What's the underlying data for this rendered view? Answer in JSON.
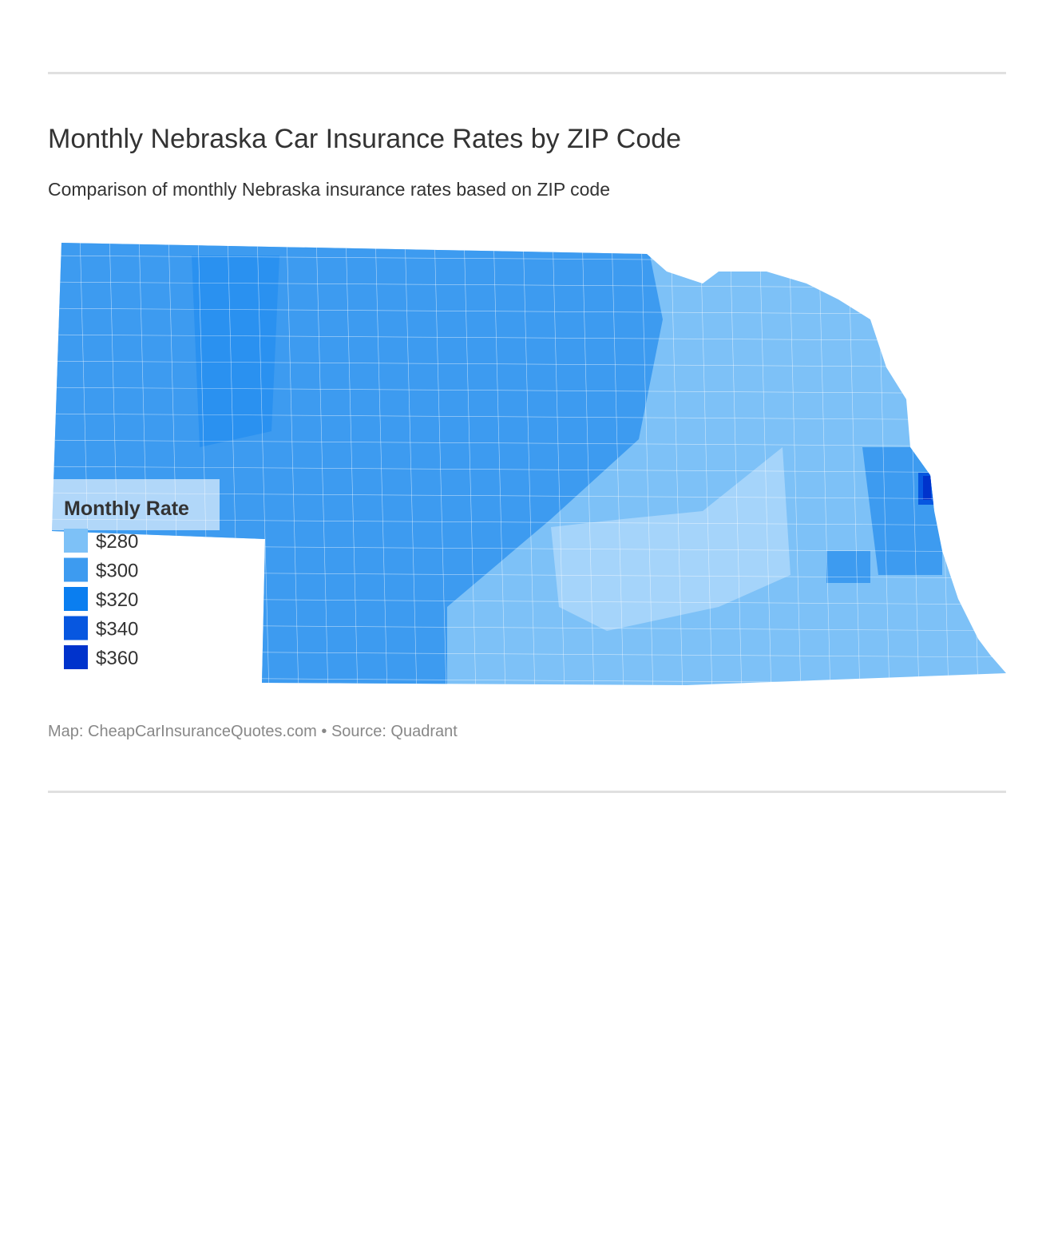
{
  "header": {
    "title": "Monthly Nebraska Car Insurance Rates by ZIP Code",
    "subtitle": "Comparison of monthly Nebraska insurance rates based on ZIP code"
  },
  "legend": {
    "title": "Monthly Rate",
    "items": [
      {
        "label": "$280",
        "color": "#7dc1f7"
      },
      {
        "label": "$300",
        "color": "#3d9bf0"
      },
      {
        "label": "$320",
        "color": "#0a7ef0"
      },
      {
        "label": "$340",
        "color": "#0757e0"
      },
      {
        "label": "$360",
        "color": "#0033cc"
      }
    ]
  },
  "footer": {
    "source": "Map: CheapCarInsuranceQuotes.com • Source: Quadrant"
  }
}
